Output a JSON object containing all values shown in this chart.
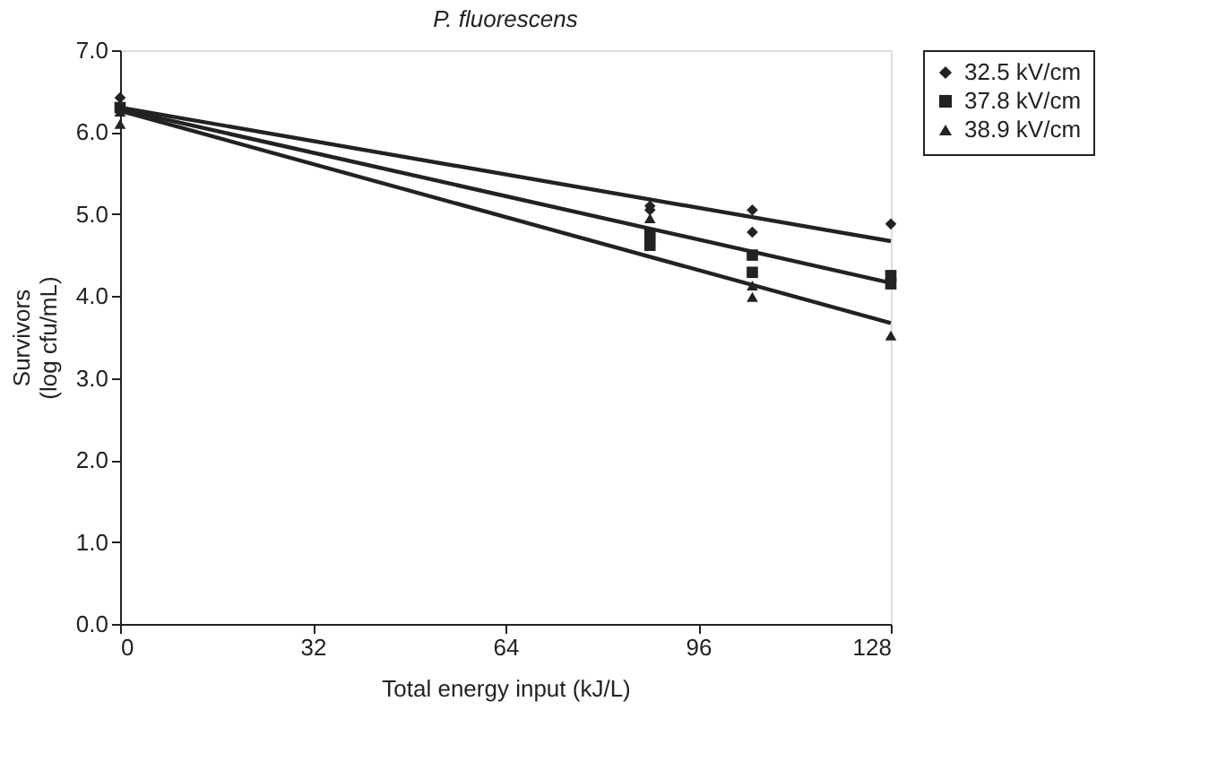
{
  "chart_data": {
    "type": "scatter",
    "title": "P. fluorescens",
    "xlabel": "Total energy input (kJ/L)",
    "ylabel": "Survivors\n(log cfu/mL)",
    "xlim": [
      0,
      128
    ],
    "xticks": [
      0,
      32,
      64,
      96,
      128
    ],
    "ylim": [
      0,
      7
    ],
    "yticks": [
      {
        "value": 0,
        "label": "0.0"
      },
      {
        "value": 1,
        "label": "1.0"
      },
      {
        "value": 2,
        "label": "2.0"
      },
      {
        "value": 3,
        "label": "3.0"
      },
      {
        "value": 4,
        "label": "4.0"
      },
      {
        "value": 5,
        "label": "5.0"
      },
      {
        "value": 6,
        "label": "6.0"
      },
      {
        "value": 7,
        "label": "7.0"
      }
    ],
    "grid": false,
    "legend": "right",
    "series": [
      {
        "name": "32.5 kV/cm",
        "color": "#222222",
        "marker": "diamond",
        "x": [
          0,
          88,
          88,
          105,
          105,
          128
        ],
        "values": [
          6.42,
          5.1,
          5.05,
          5.05,
          4.78,
          4.88
        ]
      },
      {
        "name": "37.8 kV/cm",
        "color": "#222222",
        "marker": "square",
        "x": [
          0,
          88,
          88,
          105,
          105,
          128,
          128
        ],
        "values": [
          6.3,
          4.75,
          4.62,
          4.5,
          4.29,
          4.25,
          4.15
        ]
      },
      {
        "name": "38.9 kV/cm",
        "color": "#222222",
        "marker": "triangle",
        "x": [
          0,
          0,
          88,
          105,
          105,
          128
        ],
        "values": [
          6.1,
          6.25,
          4.95,
          4.13,
          3.99,
          3.52
        ]
      },
      {
        "type": "line",
        "color": "#222222",
        "x": [
          0,
          128
        ],
        "values": [
          6.3,
          4.67
        ]
      },
      {
        "type": "line",
        "color": "#222222",
        "x": [
          0,
          128
        ],
        "values": [
          6.28,
          4.16
        ]
      },
      {
        "type": "line",
        "color": "#222222",
        "x": [
          0,
          128
        ],
        "values": [
          6.26,
          3.67
        ]
      }
    ]
  }
}
